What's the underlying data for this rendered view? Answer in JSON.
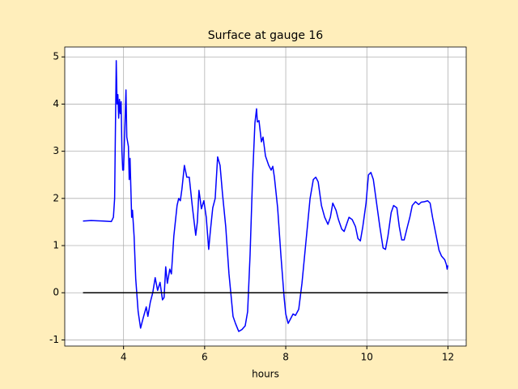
{
  "chart_data": {
    "type": "line",
    "title": "Surface at gauge 16",
    "xlabel": "hours",
    "xlim": [
      2.55,
      12.45
    ],
    "ylim": [
      -1.13,
      5.21
    ],
    "xticks": [
      4,
      6,
      8,
      10,
      12
    ],
    "yticks": [
      -1,
      0,
      1,
      2,
      3,
      4,
      5
    ],
    "grid": true,
    "series": [
      {
        "color": "#0000ff",
        "x": [
          3.0,
          3.2,
          3.5,
          3.7,
          3.75,
          3.78,
          3.8,
          3.82,
          3.84,
          3.86,
          3.88,
          3.9,
          3.92,
          3.94,
          3.96,
          3.98,
          4.0,
          4.06,
          4.08,
          4.12,
          4.14,
          4.16,
          4.2,
          4.22,
          4.26,
          4.3,
          4.36,
          4.42,
          4.48,
          4.56,
          4.6,
          4.66,
          4.72,
          4.78,
          4.84,
          4.9,
          4.96,
          5.0,
          5.04,
          5.08,
          5.14,
          5.18,
          5.24,
          5.32,
          5.36,
          5.4,
          5.44,
          5.5,
          5.56,
          5.62,
          5.7,
          5.78,
          5.82,
          5.86,
          5.92,
          5.98,
          6.04,
          6.1,
          6.14,
          6.2,
          6.26,
          6.32,
          6.38,
          6.44,
          6.52,
          6.6,
          6.7,
          6.76,
          6.84,
          6.92,
          7.0,
          7.06,
          7.12,
          7.18,
          7.24,
          7.28,
          7.3,
          7.34,
          7.4,
          7.44,
          7.5,
          7.58,
          7.64,
          7.68,
          7.72,
          7.8,
          7.88,
          7.96,
          8.0,
          8.06,
          8.12,
          8.18,
          8.24,
          8.32,
          8.4,
          8.5,
          8.6,
          8.68,
          8.74,
          8.8,
          8.88,
          8.96,
          9.04,
          9.1,
          9.16,
          9.24,
          9.3,
          9.38,
          9.44,
          9.5,
          9.56,
          9.64,
          9.72,
          9.78,
          9.84,
          9.9,
          9.98,
          10.04,
          10.1,
          10.16,
          10.24,
          10.32,
          10.4,
          10.46,
          10.52,
          10.6,
          10.66,
          10.74,
          10.8,
          10.86,
          10.92,
          11.0,
          11.06,
          11.12,
          11.2,
          11.28,
          11.34,
          11.42,
          11.5,
          11.56,
          11.62,
          11.7,
          11.78,
          11.84,
          11.92,
          11.96,
          11.98,
          12.0
        ],
        "values": [
          1.52,
          1.53,
          1.52,
          1.51,
          1.6,
          2.0,
          3.5,
          4.92,
          4.0,
          4.2,
          3.7,
          4.1,
          3.8,
          4.05,
          3.0,
          2.6,
          2.6,
          4.3,
          3.3,
          3.1,
          2.4,
          2.85,
          1.6,
          1.75,
          1.2,
          0.3,
          -0.4,
          -0.75,
          -0.55,
          -0.3,
          -0.5,
          -0.2,
          0.0,
          0.32,
          0.05,
          0.22,
          -0.15,
          -0.1,
          0.55,
          0.2,
          0.5,
          0.4,
          1.2,
          1.85,
          2.0,
          1.95,
          2.2,
          2.7,
          2.45,
          2.45,
          1.8,
          1.22,
          1.5,
          2.17,
          1.78,
          1.95,
          1.6,
          0.92,
          1.3,
          1.8,
          2.0,
          2.88,
          2.7,
          2.1,
          1.4,
          0.4,
          -0.5,
          -0.65,
          -0.82,
          -0.78,
          -0.7,
          -0.4,
          0.8,
          2.4,
          3.6,
          3.9,
          3.62,
          3.65,
          3.2,
          3.3,
          2.9,
          2.7,
          2.6,
          2.68,
          2.45,
          1.8,
          0.8,
          -0.1,
          -0.45,
          -0.65,
          -0.55,
          -0.45,
          -0.48,
          -0.35,
          0.2,
          1.1,
          2.0,
          2.4,
          2.45,
          2.35,
          1.85,
          1.6,
          1.45,
          1.6,
          1.9,
          1.75,
          1.55,
          1.35,
          1.3,
          1.45,
          1.6,
          1.55,
          1.4,
          1.15,
          1.1,
          1.4,
          1.9,
          2.5,
          2.55,
          2.4,
          1.9,
          1.4,
          0.95,
          0.92,
          1.2,
          1.7,
          1.85,
          1.8,
          1.4,
          1.12,
          1.12,
          1.4,
          1.6,
          1.85,
          1.93,
          1.87,
          1.92,
          1.93,
          1.95,
          1.9,
          1.6,
          1.25,
          0.9,
          0.78,
          0.7,
          0.6,
          0.5,
          0.58
        ]
      },
      {
        "color": "#000000",
        "x": [
          3,
          12
        ],
        "values": [
          0,
          0
        ]
      }
    ]
  }
}
